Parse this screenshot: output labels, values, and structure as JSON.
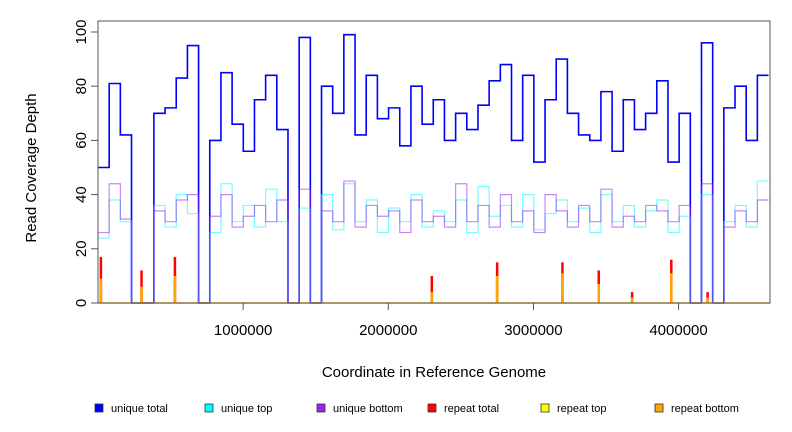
{
  "chart_data": {
    "type": "line",
    "title": "",
    "xlabel": "Coordinate in Reference Genome",
    "ylabel": "Read Coverage Depth",
    "xlim": [
      0,
      4630000
    ],
    "ylim": [
      0,
      100
    ],
    "x_ticks": [
      1000000,
      2000000,
      3000000,
      4000000
    ],
    "x_tick_labels": [
      "1000000",
      "2000000",
      "3000000",
      "4000000"
    ],
    "y_ticks": [
      0,
      20,
      40,
      60,
      80,
      100
    ],
    "y_tick_labels": [
      "0",
      "20",
      "40",
      "60",
      "80",
      "100"
    ],
    "x_start": 0,
    "x_step": 77000,
    "series": [
      {
        "name": "unique total",
        "color": "#0000ff",
        "values": [
          50,
          81,
          62,
          0,
          0,
          70,
          72,
          83,
          95,
          0,
          60,
          85,
          66,
          56,
          75,
          84,
          64,
          0,
          98,
          0,
          80,
          70,
          99,
          62,
          84,
          68,
          72,
          58,
          80,
          66,
          75,
          60,
          70,
          64,
          73,
          82,
          88,
          60,
          84,
          52,
          75,
          90,
          70,
          62,
          60,
          78,
          56,
          75,
          64,
          70,
          82,
          52,
          70,
          0,
          96,
          0,
          72,
          80,
          60,
          84
        ]
      },
      {
        "name": "unique top",
        "color": "#00ffff",
        "values": [
          24,
          38,
          30,
          0,
          0,
          36,
          28,
          40,
          33,
          0,
          26,
          44,
          30,
          36,
          28,
          42,
          30,
          0,
          35,
          0,
          40,
          27,
          44,
          30,
          38,
          26,
          35,
          30,
          40,
          28,
          34,
          30,
          38,
          26,
          43,
          32,
          36,
          28,
          40,
          27,
          33,
          38,
          30,
          35,
          26,
          40,
          30,
          36,
          28,
          34,
          38,
          26,
          32,
          0,
          40,
          0,
          30,
          36,
          28,
          45
        ]
      },
      {
        "name": "unique bottom",
        "color": "#a020f0",
        "values": [
          26,
          44,
          31,
          0,
          0,
          34,
          30,
          38,
          40,
          0,
          32,
          40,
          28,
          32,
          36,
          30,
          38,
          0,
          42,
          0,
          34,
          30,
          45,
          28,
          36,
          32,
          34,
          26,
          38,
          30,
          32,
          28,
          44,
          30,
          36,
          28,
          40,
          30,
          34,
          26,
          40,
          34,
          28,
          36,
          30,
          42,
          28,
          32,
          30,
          36,
          34,
          30,
          36,
          0,
          44,
          0,
          28,
          34,
          30,
          38
        ]
      }
    ],
    "repeat_spikes": [
      {
        "x": 20000,
        "total": 17,
        "top": 0,
        "bottom": 9
      },
      {
        "x": 300000,
        "total": 12,
        "top": 0,
        "bottom": 6
      },
      {
        "x": 530000,
        "total": 17,
        "top": 0,
        "bottom": 10
      },
      {
        "x": 2300000,
        "total": 10,
        "top": 0,
        "bottom": 4
      },
      {
        "x": 2750000,
        "total": 15,
        "top": 0,
        "bottom": 10
      },
      {
        "x": 3200000,
        "total": 15,
        "top": 0,
        "bottom": 11
      },
      {
        "x": 3450000,
        "total": 12,
        "top": 0,
        "bottom": 7
      },
      {
        "x": 3680000,
        "total": 4,
        "top": 0,
        "bottom": 2
      },
      {
        "x": 3950000,
        "total": 16,
        "top": 0,
        "bottom": 11
      },
      {
        "x": 4200000,
        "total": 4,
        "top": 0,
        "bottom": 2
      }
    ],
    "legend": {
      "placement": "bottom",
      "entries": [
        {
          "label": "unique total",
          "color": "#0000ff"
        },
        {
          "label": "unique top",
          "color": "#00ffff"
        },
        {
          "label": "unique bottom",
          "color": "#a020f0"
        },
        {
          "label": "repeat total",
          "color": "#ff0000"
        },
        {
          "label": "repeat top",
          "color": "#ffff00"
        },
        {
          "label": "repeat bottom",
          "color": "#ffa500"
        }
      ]
    },
    "grid": false
  }
}
